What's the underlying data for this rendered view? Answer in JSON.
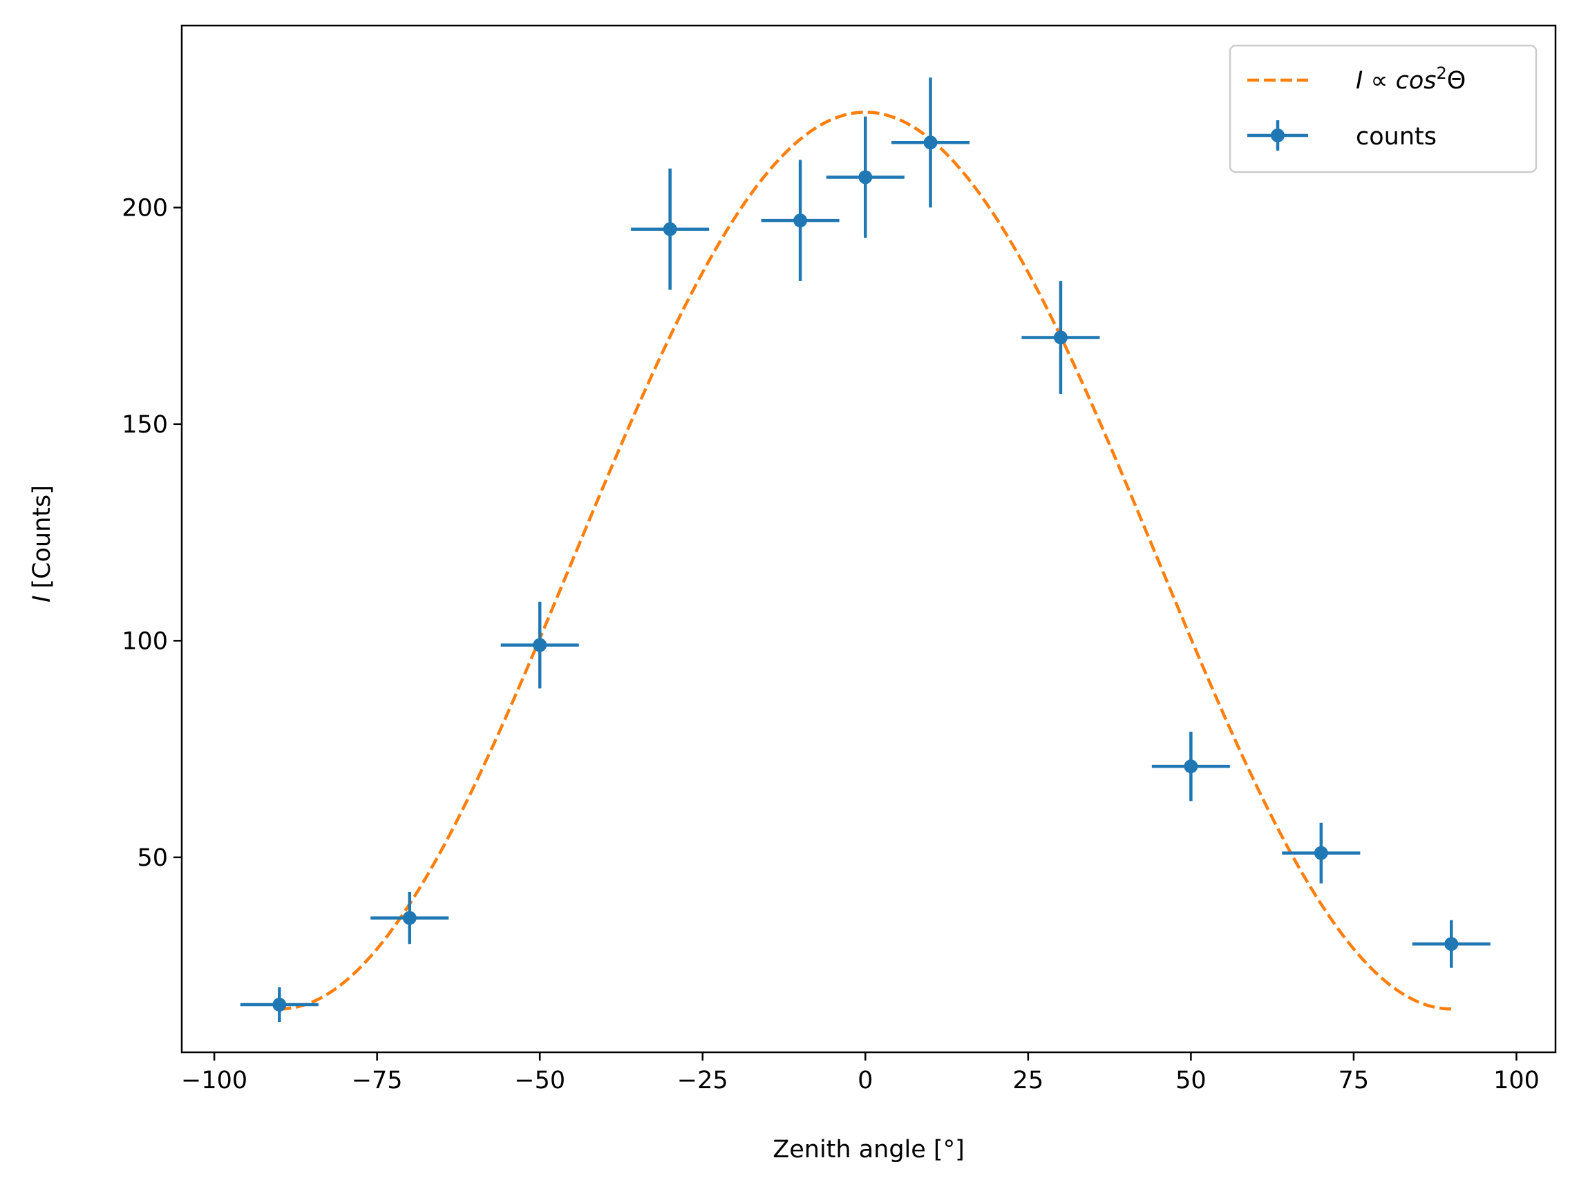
{
  "chart_data": {
    "type": "scatter",
    "xlabel": "Zenith angle [°]",
    "ylabel": "I [Counts]",
    "xlim": [
      -105,
      106
    ],
    "ylim": [
      5,
      242
    ],
    "x_ticks": [
      -100,
      -75,
      -50,
      -25,
      0,
      25,
      50,
      75,
      100
    ],
    "x_tick_labels": [
      "−100",
      "−75",
      "−50",
      "−25",
      "0",
      "25",
      "50",
      "75",
      "100"
    ],
    "y_ticks": [
      50,
      100,
      150,
      200
    ],
    "y_tick_labels": [
      "50",
      "100",
      "150",
      "200"
    ],
    "grid": false,
    "legend_position": "top-right",
    "series": [
      {
        "name": "counts",
        "kind": "errorbar",
        "color": "#1f77b4",
        "x": [
          -90,
          -70,
          -50,
          -30,
          -10,
          0,
          10,
          30,
          50,
          70,
          90
        ],
        "y": [
          16,
          36,
          99,
          195,
          197,
          207,
          215,
          170,
          71,
          51,
          30
        ],
        "xerr": [
          6,
          6,
          6,
          6,
          6,
          6,
          6,
          6,
          6,
          6,
          6
        ],
        "yerr": [
          4,
          6,
          10,
          14,
          14,
          14,
          15,
          13,
          8,
          7,
          5.5
        ]
      },
      {
        "name": "I ∝ cos²Θ",
        "kind": "line",
        "style": "dashed",
        "color": "#ff7f0e",
        "function": "A*cos(x)^2 + B",
        "A": 207,
        "B": 15,
        "x_range": [
          -90,
          90
        ]
      }
    ]
  }
}
